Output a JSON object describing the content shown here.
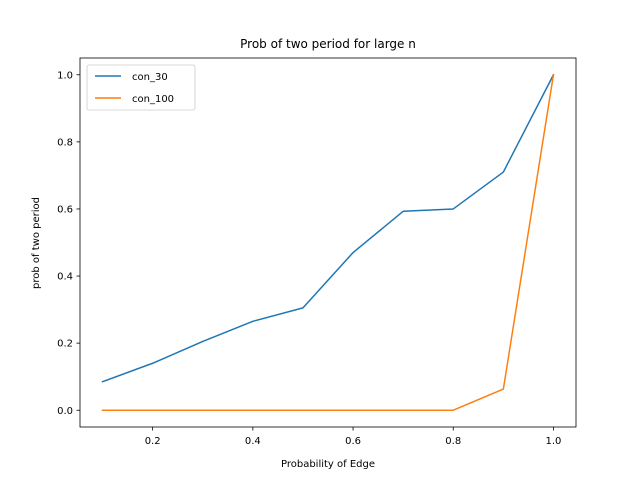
{
  "chart_data": {
    "type": "line",
    "title": "Prob of two period for large n",
    "xlabel": "Probability of Edge",
    "ylabel": "prob of two period",
    "x": [
      0.1,
      0.2,
      0.3,
      0.4,
      0.5,
      0.6,
      0.7,
      0.8,
      0.9,
      1.0
    ],
    "series": [
      {
        "name": "con_30",
        "color": "#1f77b4",
        "values": [
          0.085,
          0.14,
          0.205,
          0.265,
          0.305,
          0.47,
          0.593,
          0.6,
          0.71,
          1.0
        ]
      },
      {
        "name": "con_100",
        "color": "#ff7f0e",
        "values": [
          0.0,
          0.0,
          0.0,
          0.0,
          0.0,
          0.0,
          0.0,
          0.0,
          0.063,
          1.0
        ]
      }
    ],
    "xlim": [
      0.055,
      1.045
    ],
    "ylim": [
      -0.05,
      1.05
    ],
    "xticks": [
      "0.2",
      "0.4",
      "0.6",
      "0.8",
      "1.0"
    ],
    "yticks": [
      "0.0",
      "0.2",
      "0.4",
      "0.6",
      "0.8",
      "1.0"
    ],
    "grid": false,
    "legend_position": "top-left"
  }
}
